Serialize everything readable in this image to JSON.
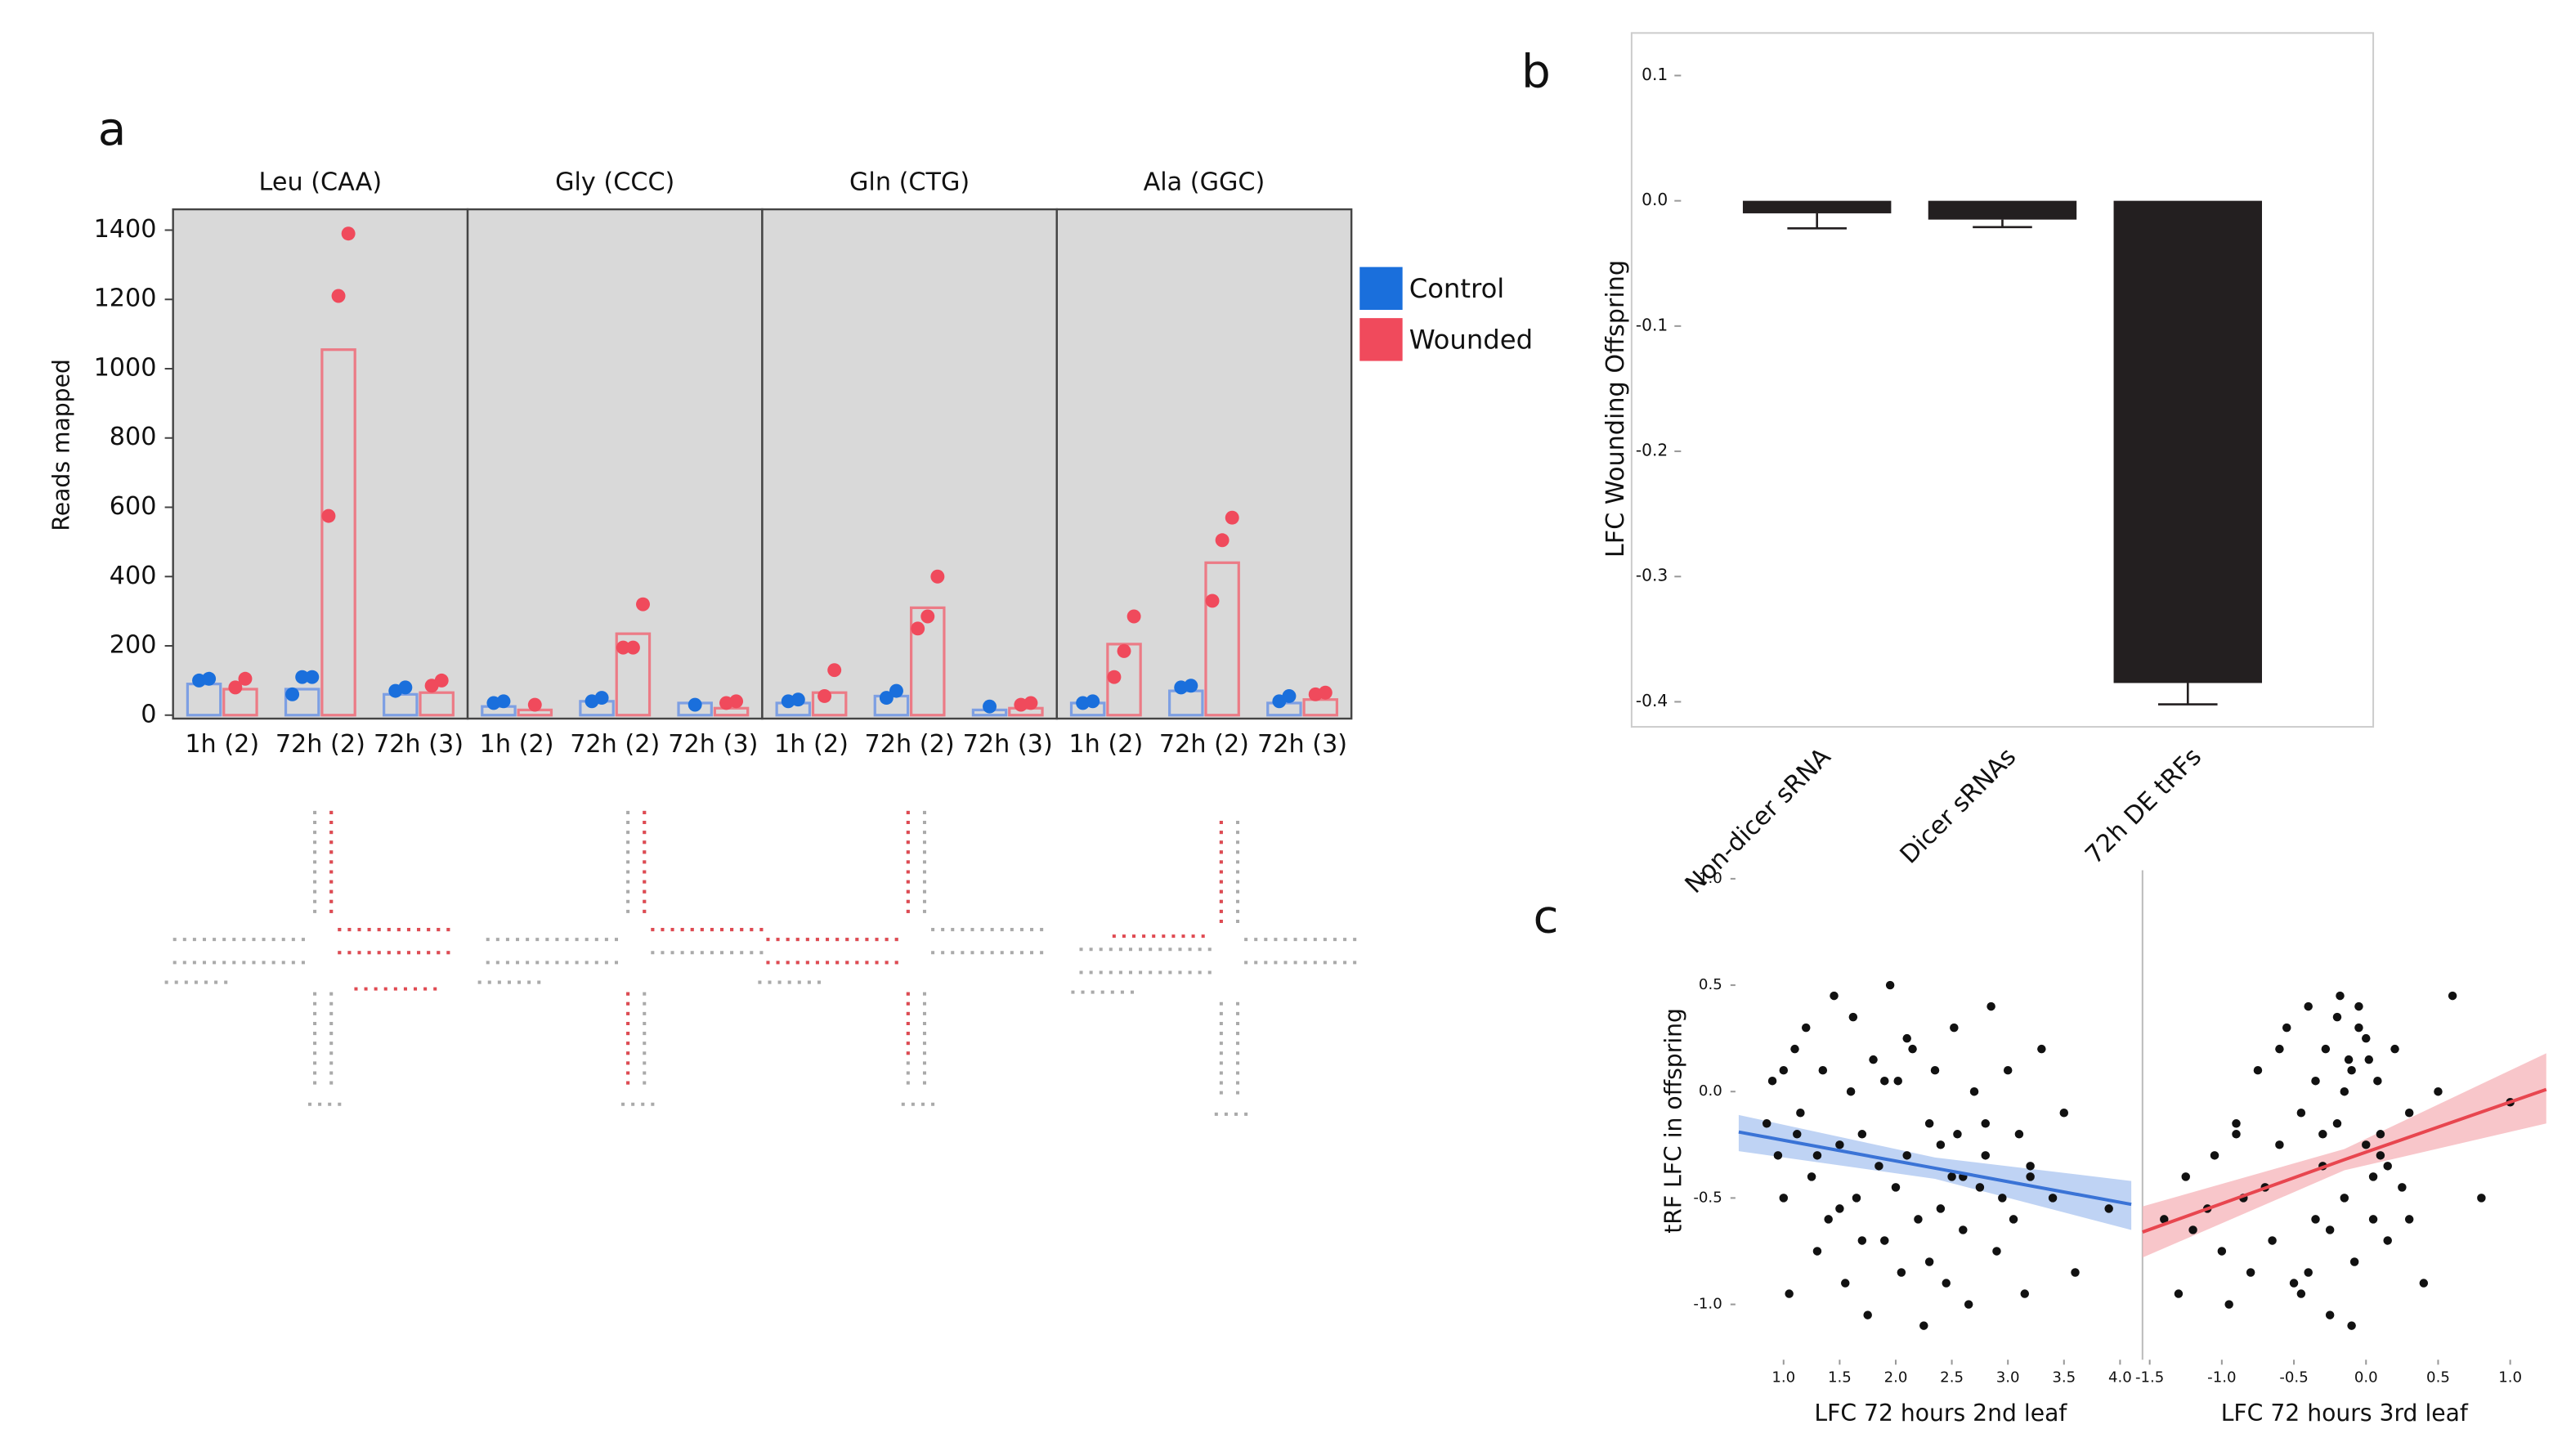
{
  "chart_data": [
    {
      "type": "facet_bar",
      "panel_label": "a",
      "y_label": "Reads mapped",
      "ylim": [
        -10,
        1460
      ],
      "yticks": [
        0,
        200,
        400,
        600,
        800,
        1000,
        1200,
        1400
      ],
      "facets": [
        "Leu (CAA)",
        "Gly (CCC)",
        "Gln (CTG)",
        "Ala (GGC)"
      ],
      "categories": [
        "1h (2)",
        "72h (2)",
        "72h (3)"
      ],
      "legend": "right",
      "series": [
        {
          "name": "Control",
          "color": "#1a6fdc",
          "bar_color": "#7d9fe3",
          "values": [
            [
              90,
              75,
              60
            ],
            [
              25,
              40,
              35
            ],
            [
              35,
              55,
              15
            ],
            [
              35,
              70,
              35
            ]
          ],
          "points": [
            [
              [
                100,
                105
              ],
              [
                60,
                110,
                110
              ],
              [
                70,
                80
              ]
            ],
            [
              [
                35,
                40
              ],
              [
                40,
                50
              ],
              [
                30
              ]
            ],
            [
              [
                40,
                45
              ],
              [
                50,
                70
              ],
              [
                25
              ]
            ],
            [
              [
                35,
                40
              ],
              [
                80,
                85
              ],
              [
                40,
                55
              ]
            ]
          ]
        },
        {
          "name": "Wounded",
          "color": "#f04a5c",
          "bar_color": "#ec7b86",
          "values": [
            [
              75,
              1055,
              65
            ],
            [
              15,
              235,
              20
            ],
            [
              65,
              310,
              20
            ],
            [
              205,
              440,
              45
            ]
          ],
          "points": [
            [
              [
                80,
                105
              ],
              [
                575,
                1210,
                1390
              ],
              [
                85,
                100
              ]
            ],
            [
              [
                30
              ],
              [
                195,
                195,
                320
              ],
              [
                35,
                40
              ]
            ],
            [
              [
                55,
                130
              ],
              [
                250,
                285,
                400
              ],
              [
                30,
                35
              ]
            ],
            [
              [
                110,
                185,
                285
              ],
              [
                330,
                505,
                570
              ],
              [
                60,
                65
              ]
            ]
          ]
        }
      ]
    },
    {
      "type": "bar",
      "panel_label": "b",
      "y_label": "LFC Wounding Offspring",
      "categories": [
        "Non-dicer sRNA",
        "Dicer sRNAs",
        "72h DE tRFs"
      ],
      "values": [
        -0.01,
        -0.015,
        -0.385
      ],
      "errors": [
        0.012,
        0.006,
        0.017
      ],
      "color": "#231f20",
      "ylim": [
        -0.42,
        0.134
      ],
      "yticks": [
        0.1,
        {
          "value": 0,
          "label": "0.0"
        },
        -0.1,
        -0.2,
        -0.3,
        -0.4
      ]
    },
    {
      "type": "facet_scatter",
      "panel_label": "c",
      "y_label": "tRF LFC in offspring",
      "ylim": [
        -1.26,
        1.04
      ],
      "yticks": [
        {
          "value": 1,
          "label": "1.0"
        },
        0.5,
        {
          "value": 0,
          "label": "0.0"
        },
        -0.5,
        {
          "value": -1,
          "label": "-1.0"
        }
      ],
      "point_color": "#111111",
      "facets": [
        {
          "x_label": "LFC 72 hours 2nd leaf",
          "xlim": [
            0.6,
            4.2
          ],
          "xticks": [
            {
              "value": 1,
              "label": "1.0"
            },
            1.5,
            {
              "value": 2,
              "label": "2.0"
            },
            2.5,
            {
              "value": 3,
              "label": "3.0"
            },
            3.5,
            {
              "value": 4,
              "label": "4.0"
            }
          ],
          "x": [
            0.85,
            0.9,
            0.95,
            1.0,
            1.05,
            1.1,
            1.12,
            1.15,
            1.2,
            1.25,
            1.3,
            1.35,
            1.4,
            1.45,
            1.5,
            1.55,
            1.6,
            1.62,
            1.65,
            1.7,
            1.75,
            1.8,
            1.85,
            1.9,
            1.95,
            2.0,
            2.02,
            2.05,
            2.1,
            2.15,
            2.2,
            2.25,
            2.3,
            2.35,
            2.4,
            2.45,
            2.5,
            2.52,
            2.55,
            2.6,
            2.65,
            2.7,
            2.75,
            2.8,
            2.85,
            2.9,
            2.95,
            3.0,
            3.05,
            3.1,
            3.15,
            3.2,
            3.3,
            3.4,
            3.5,
            3.6,
            3.9,
            1.3,
            1.7,
            2.1,
            2.6,
            1.0,
            1.5,
            2.3,
            2.8,
            3.2,
            1.9,
            2.4
          ],
          "y": [
            -0.15,
            0.05,
            -0.3,
            -0.5,
            -0.95,
            0.2,
            -0.2,
            -0.1,
            0.3,
            -0.4,
            -0.75,
            0.1,
            -0.6,
            0.45,
            -0.25,
            -0.9,
            0.0,
            0.35,
            -0.5,
            -0.2,
            -1.05,
            0.15,
            -0.35,
            -0.7,
            0.5,
            -0.45,
            0.05,
            -0.85,
            -0.3,
            0.2,
            -0.6,
            -1.1,
            -0.15,
            0.1,
            -0.55,
            -0.9,
            -0.4,
            0.3,
            -0.2,
            -0.65,
            -1.0,
            0.0,
            -0.45,
            -0.3,
            0.4,
            -0.75,
            -0.5,
            0.1,
            -0.6,
            -0.2,
            -0.95,
            -0.35,
            0.2,
            -0.5,
            -0.1,
            -0.85,
            -0.55,
            -0.3,
            -0.7,
            0.25,
            -0.4,
            0.1,
            -0.55,
            -0.8,
            -0.15,
            -0.4,
            0.05,
            -0.25
          ],
          "fit": {
            "color": "#3a73d6",
            "band_color": "#a9c4f0",
            "x": [
              0.6,
              2.35,
              4.1
            ],
            "y": [
              -0.19,
              -0.36,
              -0.53
            ],
            "lower": [
              -0.28,
              -0.41,
              -0.65
            ],
            "upper": [
              -0.11,
              -0.31,
              -0.42
            ]
          }
        },
        {
          "x_label": "LFC 72 hours 3rd leaf",
          "xlim": [
            -1.55,
            1.25
          ],
          "xticks": [
            -1.5,
            {
              "value": -1,
              "label": "-1.0"
            },
            -0.5,
            {
              "value": 0,
              "label": "0.0"
            },
            0.5,
            {
              "value": 1,
              "label": "1.0"
            }
          ],
          "x": [
            -1.4,
            -1.3,
            -1.25,
            -1.2,
            -1.1,
            -1.05,
            -1.0,
            -0.95,
            -0.9,
            -0.85,
            -0.8,
            -0.75,
            -0.7,
            -0.65,
            -0.6,
            -0.55,
            -0.5,
            -0.45,
            -0.4,
            -0.35,
            -0.3,
            -0.28,
            -0.25,
            -0.2,
            -0.18,
            -0.15,
            -0.1,
            -0.08,
            -0.05,
            0.0,
            0.02,
            0.05,
            0.08,
            0.1,
            0.15,
            0.2,
            0.25,
            0.3,
            0.4,
            0.5,
            0.6,
            0.8,
            1.0,
            -0.3,
            -0.2,
            -0.1,
            0.0,
            0.05,
            -0.25,
            -0.15,
            -0.05,
            0.1,
            -0.6,
            -0.4,
            -0.9,
            0.3,
            -0.35,
            0.15,
            -0.45,
            -0.12
          ],
          "y": [
            -0.6,
            -0.95,
            -0.4,
            -0.65,
            -0.55,
            -0.3,
            -0.75,
            -1.0,
            -0.2,
            -0.5,
            -0.85,
            0.1,
            -0.45,
            -0.7,
            -0.25,
            0.3,
            -0.9,
            -0.1,
            0.4,
            -0.6,
            -0.35,
            0.2,
            -1.05,
            -0.15,
            0.45,
            -0.5,
            0.1,
            -0.8,
            0.3,
            -0.25,
            0.15,
            -0.6,
            0.05,
            -0.3,
            -0.7,
            0.2,
            -0.45,
            -0.1,
            -0.9,
            0.0,
            0.45,
            -0.5,
            -0.05,
            -0.2,
            0.35,
            -1.1,
            0.25,
            -0.4,
            -0.65,
            0.0,
            0.4,
            -0.2,
            0.2,
            -0.85,
            -0.15,
            -0.6,
            0.05,
            -0.35,
            -0.95,
            0.15
          ],
          "fit": {
            "color": "#e8464f",
            "band_color": "#f5b3b8",
            "x": [
              -1.55,
              -0.15,
              1.25
            ],
            "y": [
              -0.66,
              -0.32,
              0.01
            ],
            "lower": [
              -0.78,
              -0.37,
              -0.15
            ],
            "upper": [
              -0.54,
              -0.27,
              0.18
            ]
          }
        }
      ]
    }
  ]
}
